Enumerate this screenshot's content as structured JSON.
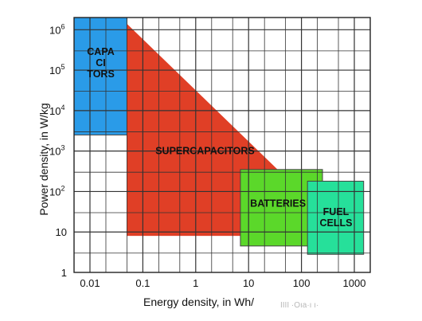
{
  "chart_data": {
    "type": "area",
    "xlabel": "Energy density, in Wh/",
    "ylabel": "Power density, in W/kg",
    "x_scale": "log",
    "y_scale": "log",
    "xlim": [
      0.005,
      2000
    ],
    "ylim": [
      1,
      2000000
    ],
    "grid": true,
    "x_ticks": [
      {
        "value": 0.01,
        "label": "0.01"
      },
      {
        "value": 0.1,
        "label": "0.1"
      },
      {
        "value": 1,
        "label": "1"
      },
      {
        "value": 10,
        "label": "10"
      },
      {
        "value": 100,
        "label": "100"
      },
      {
        "value": 1000,
        "label": "1000"
      }
    ],
    "y_ticks": [
      {
        "value": 1,
        "base": "1",
        "exp": ""
      },
      {
        "value": 10,
        "base": "10",
        "exp": ""
      },
      {
        "value": 100,
        "base": "10",
        "exp": "2"
      },
      {
        "value": 1000,
        "base": "10",
        "exp": "3"
      },
      {
        "value": 10000,
        "base": "10",
        "exp": "4"
      },
      {
        "value": 100000,
        "base": "10",
        "exp": "5"
      },
      {
        "value": 1000000,
        "base": "10",
        "exp": "6"
      }
    ],
    "regions": [
      {
        "name": "CAPACITORS",
        "label_lines": [
          "CAPA",
          "CI",
          "TORS"
        ],
        "shape": "rect",
        "x_range": [
          0.005,
          0.05
        ],
        "y_range": [
          2500,
          2000000
        ],
        "label_at": [
          0.016,
          150000
        ],
        "color": "#2a9be8"
      },
      {
        "name": "SUPERCAPACITORS",
        "label_lines": [
          "SUPERCAPACITORS"
        ],
        "shape": "polygon",
        "points": [
          [
            0.05,
            1400000
          ],
          [
            40,
            300
          ],
          [
            40,
            8
          ],
          [
            0.05,
            8
          ]
        ],
        "label_at": [
          1.5,
          1000
        ],
        "color": "#e03f26"
      },
      {
        "name": "BATTERIES",
        "label_lines": [
          "BATTERIES"
        ],
        "shape": "rect",
        "x_range": [
          7,
          250
        ],
        "y_range": [
          4.5,
          350
        ],
        "label_at": [
          36,
          50
        ],
        "color": "#5bd82a"
      },
      {
        "name": "FUEL CELLS",
        "label_lines": [
          "FUEL",
          "CELLS"
        ],
        "shape": "rect",
        "x_range": [
          130,
          1500
        ],
        "y_range": [
          2.8,
          180
        ],
        "label_at": [
          450,
          23
        ],
        "color": "#26e09a"
      }
    ]
  },
  "watermark": "IIII ·Oıa·ı ı·"
}
